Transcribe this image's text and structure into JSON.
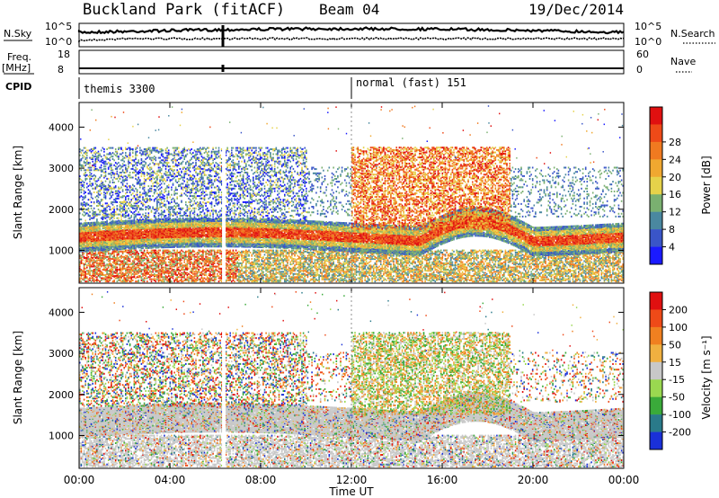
{
  "header": {
    "station": "Buckland Park (fitACF)",
    "beam": "Beam 04",
    "date": "19/Dec/2014"
  },
  "param_panels": {
    "nsky_label": "N.Sky",
    "nsearch_label": "N.Search",
    "nsky_ticks": [
      "10^5",
      "10^0"
    ],
    "nsearch_ticks": [
      "10^5",
      "10^0"
    ],
    "freq_label_1": "Freq.",
    "freq_label_2": "[MHz]",
    "freq_ticks": [
      "18",
      "8"
    ],
    "nave_label": "Nave",
    "nave_ticks": [
      "60",
      "0"
    ],
    "cpid_label": "CPID",
    "cpid_segments": [
      {
        "name": "themis 3300",
        "start_hour": 0
      },
      {
        "name": "normal (fast) 151",
        "start_hour": 12
      }
    ]
  },
  "chart_data": [
    {
      "type": "heatmap",
      "title": "",
      "ylabel": "Slant Range [km]",
      "xlabel": "Time UT",
      "x_ticks": [
        "00:00",
        "04:00",
        "08:00",
        "12:00",
        "16:00",
        "20:00",
        "00:00"
      ],
      "xlim_hours": [
        0,
        24
      ],
      "y_ticks": [
        1000,
        2000,
        3000,
        4000
      ],
      "ylim": [
        200,
        4600
      ],
      "colorbar": {
        "label": "Power [dB]",
        "ticks": [
          "4",
          "8",
          "12",
          "16",
          "20",
          "24",
          "28"
        ],
        "colors": [
          "#1a1aff",
          "#3a55c8",
          "#4a88a0",
          "#7ab070",
          "#e6d24a",
          "#f0a830",
          "#f07a20",
          "#ee4a18",
          "#e01010"
        ]
      },
      "features": [
        {
          "name": "main band",
          "start_hour": 0,
          "end_hour": 24,
          "range_km": [
            1100,
            1500
          ],
          "power_db": 26
        },
        {
          "name": "broad echo region",
          "start_hour": 12,
          "end_hour": 19,
          "range_km": [
            1500,
            3500
          ],
          "power_db": 20
        }
      ]
    },
    {
      "type": "heatmap",
      "title": "",
      "ylabel": "Slant Range [km]",
      "xlabel": "Time UT",
      "x_ticks": [
        "00:00",
        "04:00",
        "08:00",
        "12:00",
        "16:00",
        "20:00",
        "00:00"
      ],
      "xlim_hours": [
        0,
        24
      ],
      "y_ticks": [
        1000,
        2000,
        3000,
        4000
      ],
      "ylim": [
        200,
        4600
      ],
      "colorbar": {
        "label": "Velocity [m s⁻¹]",
        "ticks": [
          "200",
          "100",
          "50",
          "15",
          "-15",
          "-50",
          "-100",
          "-200"
        ],
        "colors": [
          "#1a30d8",
          "#2a7a8a",
          "#3aaa3a",
          "#9ad850",
          "#c8c8c8",
          "#f0b040",
          "#f08020",
          "#ee4a18",
          "#e01010"
        ]
      },
      "features": [
        {
          "name": "ground scatter",
          "start_hour": 0,
          "end_hour": 24,
          "range_km": [
            400,
            1900
          ],
          "velocity": 0
        },
        {
          "name": "negative velocity region",
          "start_hour": 10,
          "end_hour": 15,
          "range_km": [
            2000,
            2600
          ],
          "velocity": -50
        }
      ]
    }
  ]
}
